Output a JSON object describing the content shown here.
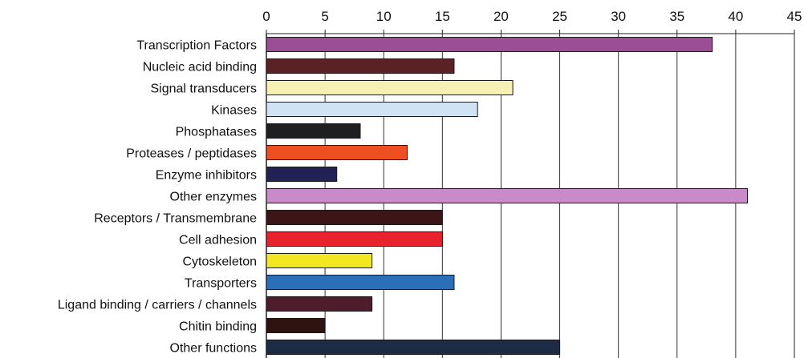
{
  "chart_data": {
    "type": "bar",
    "orientation": "horizontal",
    "title": "",
    "xlabel": "",
    "ylabel": "",
    "xlim": [
      0,
      45
    ],
    "x_ticks": [
      0,
      5,
      10,
      15,
      20,
      25,
      30,
      35,
      40,
      45
    ],
    "x_axis_position": "top",
    "grid": true,
    "legend": "none",
    "categories": [
      "Transcription Factors",
      "Nucleic acid binding",
      "Signal transducers",
      "Kinases",
      "Phosphatases",
      "Proteases / peptidases",
      "Enzyme inhibitors",
      "Other enzymes",
      "Receptors / Transmembrane",
      "Cell adhesion",
      "Cytoskeleton",
      "Transporters",
      "Ligand binding / carriers / channels",
      "Chitin binding",
      "Other functions"
    ],
    "values": [
      38,
      16,
      21,
      18,
      8,
      12,
      6,
      41,
      15,
      15,
      9,
      16,
      9,
      5,
      25
    ],
    "colors": [
      "#9b4e93",
      "#5a2224",
      "#f7f0b4",
      "#cfe3f4",
      "#1f1f22",
      "#ee4f20",
      "#222354",
      "#c98ac8",
      "#3b1518",
      "#e8232b",
      "#f3e623",
      "#2a6fb7",
      "#4e1c2a",
      "#2e1410",
      "#1d2c45"
    ]
  }
}
